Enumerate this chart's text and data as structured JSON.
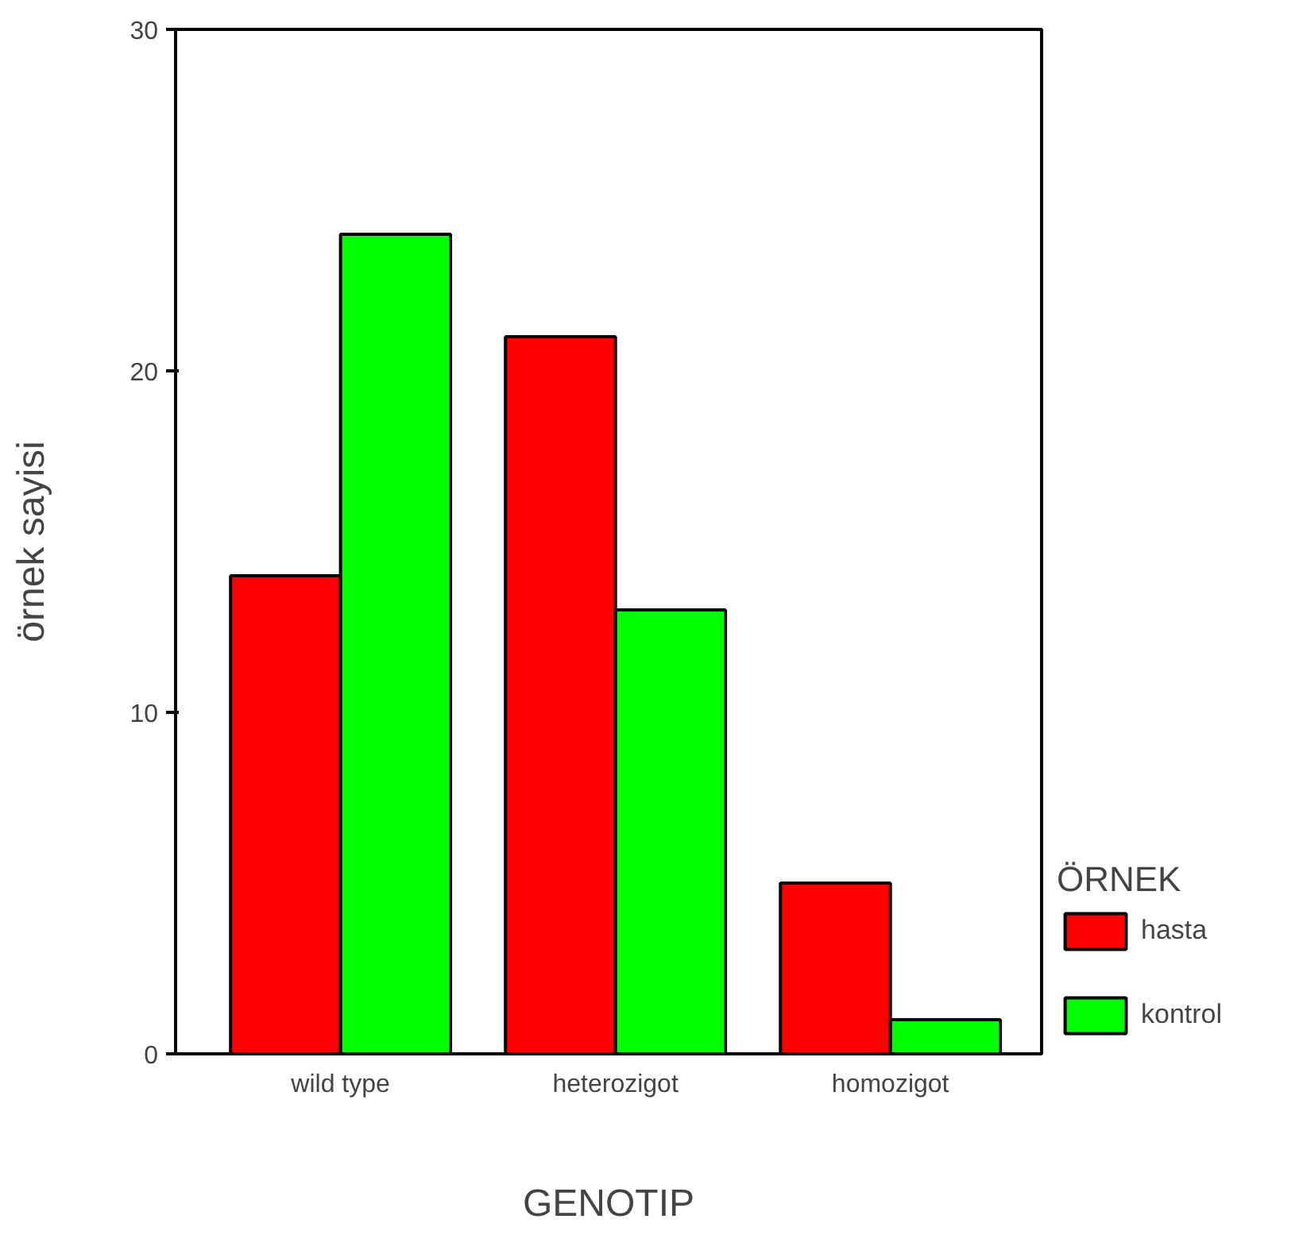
{
  "chart_data": {
    "type": "bar",
    "xlabel": "GENOTIP",
    "ylabel": "örnek sayisi",
    "legend_title": "ÖRNEK",
    "categories": [
      "wild type",
      "heterozigot",
      "homozigot"
    ],
    "series": [
      {
        "name": "hasta",
        "color": "#ff0000",
        "values": [
          14,
          21,
          5
        ]
      },
      {
        "name": "kontrol",
        "color": "#00ff00",
        "values": [
          24,
          13,
          1
        ]
      }
    ],
    "ylim": [
      0,
      30
    ],
    "yticks": [
      0,
      10,
      20,
      30
    ],
    "legend": "right"
  }
}
